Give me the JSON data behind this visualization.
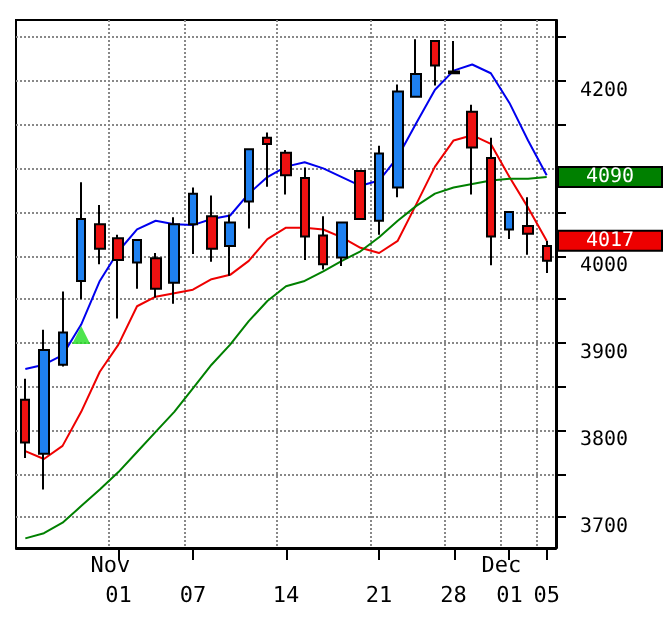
{
  "chart_data": {
    "type": "candlestick",
    "categories": [
      null,
      null,
      null,
      null,
      null,
      "01",
      null,
      null,
      null,
      "07",
      null,
      null,
      null,
      null,
      "14",
      null,
      null,
      null,
      null,
      "21",
      null,
      null,
      null,
      "28",
      null,
      null,
      "01",
      null,
      "05"
    ],
    "ohlc": [
      [
        3835,
        3859,
        3768,
        3786
      ],
      [
        3773,
        3915,
        3732,
        3892
      ],
      [
        3875,
        3959,
        3873,
        3912
      ],
      [
        3971,
        4084,
        3950,
        4042
      ],
      [
        4036,
        4058,
        3990,
        4008
      ],
      [
        4020,
        4024,
        3928,
        3995
      ],
      [
        3992,
        4018,
        3962,
        4018
      ],
      [
        3997,
        4003,
        3952,
        3962
      ],
      [
        3969,
        4044,
        3945,
        4036
      ],
      [
        4036,
        4078,
        4002,
        4071
      ],
      [
        4045,
        4069,
        3993,
        4008
      ],
      [
        4011,
        4047,
        3977,
        4038
      ],
      [
        4062,
        4122,
        4031,
        4122
      ],
      [
        4135,
        4141,
        4079,
        4128
      ],
      [
        4118,
        4121,
        4070,
        4092
      ],
      [
        4089,
        4101,
        3995,
        4022
      ],
      [
        4023,
        4045,
        3984,
        3990
      ],
      [
        3998,
        4038,
        3988,
        4038
      ],
      [
        4097,
        4097,
        4042,
        4042
      ],
      [
        4040,
        4126,
        4024,
        4117
      ],
      [
        4078,
        4196,
        4067,
        4188
      ],
      [
        4182,
        4248,
        4181,
        4208
      ],
      [
        4246,
        4246,
        4195,
        4218
      ],
      [
        4211,
        4246,
        4209,
        4209
      ],
      [
        4165,
        4173,
        4070,
        4124
      ],
      [
        4112,
        4135,
        3989,
        4022
      ],
      [
        4030,
        4050,
        4019,
        4050
      ],
      [
        4034,
        4067,
        4001,
        4025
      ],
      [
        4011,
        4017,
        3980,
        3994
      ]
    ],
    "colors": [
      "#ee1111",
      "#1e80f0",
      "#1e80f0",
      "#1e80f0",
      "#ee1111",
      "#ee1111",
      "#1e80f0",
      "#ee1111",
      "#1e80f0",
      "#1e80f0",
      "#ee1111",
      "#1e80f0",
      "#1e80f0",
      "#ee1111",
      "#ee1111",
      "#ee1111",
      "#ee1111",
      "#1e80f0",
      "#ee1111",
      "#1e80f0",
      "#1e80f0",
      "#1e80f0",
      "#ee1111",
      "#ee1111",
      "#ee1111",
      "#ee1111",
      "#1e80f0",
      "#ee1111",
      "#ee1111"
    ],
    "series": [
      {
        "type": "line",
        "color": "#0000ee",
        "values": [
          3870,
          3875,
          3886,
          3921,
          3971,
          4005,
          4030,
          4040,
          4036,
          4035,
          4042,
          4046,
          4071,
          4090,
          4102,
          4107,
          4100,
          4090,
          4080,
          4086,
          4113,
          4152,
          4190,
          4212,
          4219,
          4209,
          4175,
          4132,
          4092
        ]
      },
      {
        "type": "line",
        "color": "#ee0000",
        "values": [
          3776,
          3767,
          3782,
          3821,
          3867,
          3898,
          3942,
          3953,
          3957,
          3961,
          3973,
          3978,
          3994,
          4019,
          4032,
          4032,
          4030,
          4021,
          4009,
          4003,
          4017,
          4059,
          4102,
          4132,
          4138,
          4128,
          4090,
          4055,
          4017
        ]
      },
      {
        "type": "line",
        "color": "#008000",
        "values": [
          3676,
          3682,
          3694,
          3713,
          3732,
          3752,
          3775,
          3798,
          3821,
          3848,
          3875,
          3898,
          3925,
          3948,
          3965,
          3971,
          3982,
          3994,
          4005,
          4021,
          4040,
          4057,
          4071,
          4078,
          4082,
          4086,
          4088,
          4088,
          4090
        ]
      },
      {
        "type": "scatter",
        "marker": "triangle",
        "color": "#22dd22",
        "values": [
          null,
          null,
          null,
          3909,
          null,
          null,
          null,
          null,
          null,
          null,
          null,
          null,
          null,
          null,
          null,
          null,
          null,
          null,
          null,
          null,
          null,
          null,
          null,
          null,
          null,
          null,
          null,
          null,
          null
        ]
      }
    ],
    "ylim": [
      3665,
      4270
    ],
    "yticks": [
      {
        "value": 3700,
        "label": "3700"
      },
      {
        "value": 3750,
        "label": null
      },
      {
        "value": 3800,
        "label": "3800"
      },
      {
        "value": 3850,
        "label": null
      },
      {
        "value": 3900,
        "label": "3900"
      },
      {
        "value": 3950,
        "label": null
      },
      {
        "value": 4000,
        "label": "4000"
      },
      {
        "value": 4050,
        "label": null
      },
      {
        "value": 4100,
        "label": null
      },
      {
        "value": 4150,
        "label": null
      },
      {
        "value": 4200,
        "label": "4200"
      },
      {
        "value": 4250,
        "label": null
      }
    ],
    "grid": true,
    "annotations": [
      "Nov",
      "Dec",
      {
        "text": "4090",
        "x": "05",
        "y": 4090
      },
      {
        "text": "4017",
        "x": "05",
        "y": 4017
      }
    ]
  }
}
